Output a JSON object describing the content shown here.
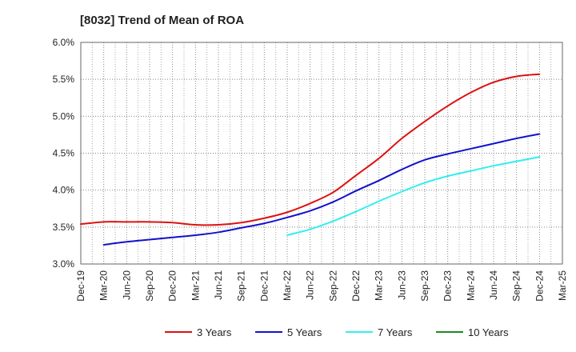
{
  "chart_data": {
    "type": "line",
    "title": "[8032]  Trend of Mean of ROA",
    "xlabel": "",
    "ylabel": "",
    "ylim": [
      3.0,
      6.0
    ],
    "yticks": [
      "3.0%",
      "3.5%",
      "4.0%",
      "4.5%",
      "5.0%",
      "5.5%",
      "6.0%"
    ],
    "ytick_values": [
      3.0,
      3.5,
      4.0,
      4.5,
      5.0,
      5.5,
      6.0
    ],
    "grid": true,
    "legend_position": "bottom",
    "categories": [
      "Dec-19",
      "Mar-20",
      "Jun-20",
      "Sep-20",
      "Dec-20",
      "Mar-21",
      "Jun-21",
      "Sep-21",
      "Dec-21",
      "Mar-22",
      "Jun-22",
      "Sep-22",
      "Dec-22",
      "Mar-23",
      "Jun-23",
      "Sep-23",
      "Dec-23",
      "Mar-24",
      "Jun-24",
      "Sep-24",
      "Dec-24",
      "Mar-25"
    ],
    "series": [
      {
        "name": "3 Years",
        "color": "#dd1111",
        "values": [
          3.54,
          3.57,
          3.57,
          3.57,
          3.56,
          3.53,
          3.53,
          3.56,
          3.62,
          3.7,
          3.82,
          3.97,
          4.2,
          4.43,
          4.7,
          4.93,
          5.14,
          5.32,
          5.46,
          5.54,
          5.57,
          null
        ]
      },
      {
        "name": "5 Years",
        "color": "#1111cc",
        "values": [
          null,
          3.26,
          3.3,
          3.33,
          3.36,
          3.39,
          3.43,
          3.49,
          3.55,
          3.63,
          3.72,
          3.84,
          3.99,
          4.13,
          4.28,
          4.41,
          4.49,
          4.56,
          4.63,
          4.7,
          4.76,
          null
        ]
      },
      {
        "name": "7 Years",
        "color": "#33eeee",
        "values": [
          null,
          null,
          null,
          null,
          null,
          null,
          null,
          null,
          null,
          3.39,
          3.47,
          3.58,
          3.71,
          3.85,
          3.98,
          4.1,
          4.19,
          4.26,
          4.33,
          4.39,
          4.45,
          null
        ]
      },
      {
        "name": "10 Years",
        "color": "#228822",
        "values": [
          null,
          null,
          null,
          null,
          null,
          null,
          null,
          null,
          null,
          null,
          null,
          null,
          null,
          null,
          null,
          null,
          null,
          null,
          null,
          null,
          null,
          null
        ]
      }
    ]
  }
}
